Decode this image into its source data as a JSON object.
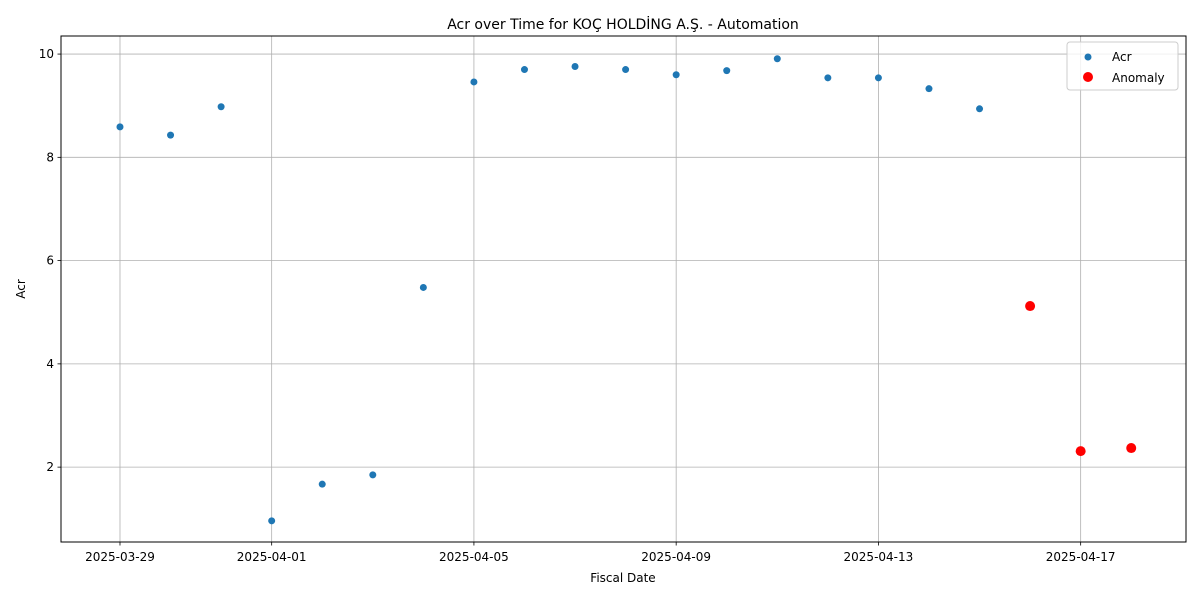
{
  "chart_data": {
    "type": "scatter",
    "title": "Acr over Time for KOÇ HOLDİNG A.Ş. - Automation",
    "xlabel": "Fiscal Date",
    "ylabel": "Acr",
    "x_range": [
      "2025-03-27T20:00",
      "2025-04-19T02:00"
    ],
    "ylim": [
      0.55,
      10.35
    ],
    "x_ticks": [
      "2025-03-29",
      "2025-04-01",
      "2025-04-05",
      "2025-04-09",
      "2025-04-13",
      "2025-04-17"
    ],
    "y_ticks": [
      2,
      4,
      6,
      8,
      10
    ],
    "grid": true,
    "legend_position": "top-right",
    "series": [
      {
        "name": "Acr",
        "color": "#1f77b4",
        "marker": "small-circle",
        "points": [
          {
            "x": "2025-03-29",
            "y": 8.59
          },
          {
            "x": "2025-03-30",
            "y": 8.43
          },
          {
            "x": "2025-03-31",
            "y": 8.98
          },
          {
            "x": "2025-04-01",
            "y": 0.96
          },
          {
            "x": "2025-04-02",
            "y": 1.67
          },
          {
            "x": "2025-04-03",
            "y": 1.85
          },
          {
            "x": "2025-04-04",
            "y": 5.48
          },
          {
            "x": "2025-04-05",
            "y": 9.46
          },
          {
            "x": "2025-04-06",
            "y": 9.7
          },
          {
            "x": "2025-04-07",
            "y": 9.76
          },
          {
            "x": "2025-04-08",
            "y": 9.7
          },
          {
            "x": "2025-04-09",
            "y": 9.6
          },
          {
            "x": "2025-04-10",
            "y": 9.68
          },
          {
            "x": "2025-04-11",
            "y": 9.91
          },
          {
            "x": "2025-04-12",
            "y": 9.54
          },
          {
            "x": "2025-04-13",
            "y": 9.54
          },
          {
            "x": "2025-04-14",
            "y": 9.33
          },
          {
            "x": "2025-04-15",
            "y": 8.94
          }
        ]
      },
      {
        "name": "Anomaly",
        "color": "#ff0000",
        "marker": "large-circle",
        "points": [
          {
            "x": "2025-04-16",
            "y": 5.12
          },
          {
            "x": "2025-04-17",
            "y": 2.31
          },
          {
            "x": "2025-04-18",
            "y": 2.37
          }
        ]
      }
    ]
  }
}
